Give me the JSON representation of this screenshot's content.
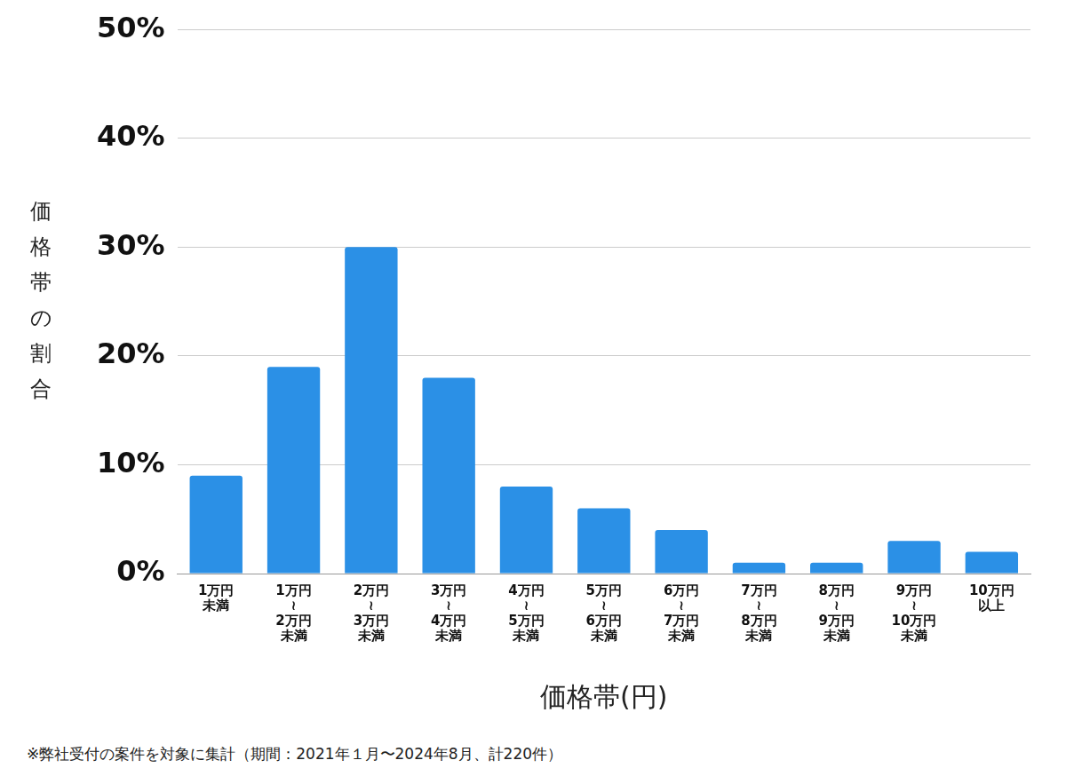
{
  "chart_data": {
    "type": "bar",
    "x_label": "価格帯(円)",
    "y_label": "価格帯の割合",
    "caption": "※弊社受付の案件を対象に集計（期間：2021年１月〜2024年8月、計220件）",
    "categories": [
      "1万円\n未満",
      "1万円\n≀\n2万円\n未満",
      "2万円\n≀\n3万円\n未満",
      "3万円\n≀\n4万円\n未満",
      "4万円\n≀\n5万円\n未満",
      "5万円\n≀\n6万円\n未満",
      "6万円\n≀\n7万円\n未満",
      "7万円\n≀\n8万円\n未満",
      "8万円\n≀\n9万円\n未満",
      "9万円\n≀\n10万円\n未満",
      "10万円\n以上"
    ],
    "values": [
      9,
      19,
      30,
      18,
      8,
      6,
      4,
      1,
      1,
      3,
      2
    ],
    "color": "#2b90e6",
    "ylim": [
      0,
      50
    ],
    "yticks": [
      {
        "value": 0,
        "label": "0%"
      },
      {
        "value": 10,
        "label": "10%"
      },
      {
        "value": 20,
        "label": "20%"
      },
      {
        "value": 30,
        "label": "30%"
      },
      {
        "value": 40,
        "label": "40%"
      },
      {
        "value": 50,
        "label": "50%"
      }
    ],
    "grid": true
  }
}
